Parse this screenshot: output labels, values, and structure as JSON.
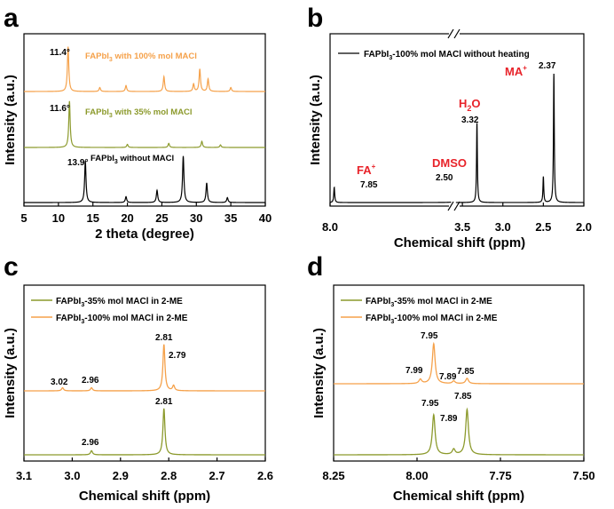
{
  "colors": {
    "black": "#000000",
    "orange": "#f5a14a",
    "olive": "#8c9a2c",
    "red": "#e8232a",
    "gray": "#5a5a5a"
  },
  "chart_data": [
    {
      "panel": "a",
      "type": "line",
      "xlabel": "2 theta (degree)",
      "ylabel": "Intensity (a.u.)",
      "xlim": [
        5,
        40
      ],
      "xticks": [
        "5",
        "10",
        "15",
        "20",
        "25",
        "30",
        "35",
        "40"
      ],
      "series": [
        {
          "name": "FAPbI3 with 100% mol MACl",
          "color": "#f5a14a",
          "peaks": [
            {
              "x": 11.4,
              "h": 0.9
            },
            {
              "x": 16.0,
              "h": 0.08
            },
            {
              "x": 19.8,
              "h": 0.12
            },
            {
              "x": 25.3,
              "h": 0.3
            },
            {
              "x": 29.6,
              "h": 0.15
            },
            {
              "x": 30.5,
              "h": 0.45
            },
            {
              "x": 31.7,
              "h": 0.25
            },
            {
              "x": 35.0,
              "h": 0.08
            }
          ]
        },
        {
          "name": "FAPbI3 with 35% mol MACl",
          "color": "#8c9a2c",
          "peaks": [
            {
              "x": 11.6,
              "h": 0.9
            },
            {
              "x": 20.0,
              "h": 0.06
            },
            {
              "x": 26.0,
              "h": 0.08
            },
            {
              "x": 30.8,
              "h": 0.12
            },
            {
              "x": 33.5,
              "h": 0.05
            }
          ]
        },
        {
          "name": "FAPbI3 without MACl",
          "color": "#000000",
          "peaks": [
            {
              "x": 13.9,
              "h": 0.85
            },
            {
              "x": 19.8,
              "h": 0.12
            },
            {
              "x": 24.3,
              "h": 0.25
            },
            {
              "x": 28.1,
              "h": 0.95
            },
            {
              "x": 31.5,
              "h": 0.4
            },
            {
              "x": 34.5,
              "h": 0.1
            }
          ]
        }
      ],
      "annotations": [
        "11.4°",
        "11.6°",
        "13.9°"
      ],
      "legend_labels": {
        "s100": {
          "main": "FAPbI",
          "sub": "3",
          "rest": " with 100% mol MACl"
        },
        "s35": {
          "main": "FAPbI",
          "sub": "3",
          "rest": " with 35% mol MACl"
        },
        "s0": {
          "main": "FAPbI",
          "sub": "3",
          "rest": " without MACl"
        }
      }
    },
    {
      "panel": "b",
      "type": "line",
      "xlabel": "Chemical shift (ppm)",
      "ylabel": "Intensity (a.u.)",
      "xticks": [
        "8.0",
        "3.5",
        "3.0",
        "2.5",
        "2.0"
      ],
      "broken_axis": true,
      "legend": {
        "main": "FAPbI",
        "sub": "3",
        "rest": "-100% mol MACl without heating"
      },
      "peaks": [
        {
          "x": 7.85,
          "h": 0.12
        },
        {
          "x": 3.32,
          "h": 0.62
        },
        {
          "x": 2.5,
          "h": 0.2
        },
        {
          "x": 2.37,
          "h": 1.0
        }
      ],
      "peak_labels": [
        "7.85",
        "3.32",
        "2.50",
        "2.37"
      ],
      "ion_labels": {
        "fa": {
          "main": "FA",
          "sup": "+"
        },
        "h2o": {
          "main": "H",
          "sub": "2",
          "rest": "O"
        },
        "dmso": {
          "main": "DMSO"
        },
        "ma": {
          "main": "MA",
          "sup": "+"
        }
      }
    },
    {
      "panel": "c",
      "type": "line",
      "xlabel": "Chemical shift (ppm)",
      "ylabel": "Intensity (a.u.)",
      "xlim": [
        3.1,
        2.6
      ],
      "xticks": [
        "3.1",
        "3.0",
        "2.9",
        "2.8",
        "2.7",
        "2.6"
      ],
      "series": [
        {
          "name": "FAPbI3-35% mol MACl in 2-ME",
          "color": "#8c9a2c",
          "peaks": [
            {
              "x": 2.96,
              "h": 0.08
            },
            {
              "x": 2.81,
              "h": 0.9
            }
          ]
        },
        {
          "name": "FAPbI3-100% mol MACl in 2-ME",
          "color": "#f5a14a",
          "peaks": [
            {
              "x": 3.02,
              "h": 0.06
            },
            {
              "x": 2.96,
              "h": 0.06
            },
            {
              "x": 2.81,
              "h": 0.9
            },
            {
              "x": 2.79,
              "h": 0.1
            }
          ]
        }
      ],
      "peak_labels": [
        "3.02",
        "2.96",
        "2.81",
        "2.79",
        "2.81",
        "2.96"
      ],
      "legend_labels": {
        "s35": {
          "main": "FAPbI",
          "sub": "3",
          "rest": "-35% mol MACl in 2-ME"
        },
        "s100": {
          "main": "FAPbI",
          "sub": "3",
          "rest": "-100% mol MACl in 2-ME"
        }
      }
    },
    {
      "panel": "d",
      "type": "line",
      "xlabel": "Chemical shift (ppm)",
      "ylabel": "Intensity (a.u.)",
      "xlim": [
        8.25,
        7.5
      ],
      "xticks": [
        "8.25",
        "8.00",
        "7.75",
        "7.50"
      ],
      "series": [
        {
          "name": "FAPbI3-35% mol MACl in 2-ME",
          "color": "#8c9a2c",
          "peaks": [
            {
              "x": 7.95,
              "h": 0.75
            },
            {
              "x": 7.89,
              "h": 0.1
            },
            {
              "x": 7.85,
              "h": 0.85
            }
          ]
        },
        {
          "name": "FAPbI3-100% mol MACl in 2-ME",
          "color": "#f5a14a",
          "peaks": [
            {
              "x": 7.99,
              "h": 0.08
            },
            {
              "x": 7.95,
              "h": 0.75
            },
            {
              "x": 7.89,
              "h": 0.05
            },
            {
              "x": 7.85,
              "h": 0.1
            }
          ]
        }
      ],
      "peak_labels": [
        "7.99",
        "7.95",
        "7.89",
        "7.85",
        "7.95",
        "7.89",
        "7.85"
      ],
      "legend_labels": {
        "s35": {
          "main": "FAPbI",
          "sub": "3",
          "rest": "-35% mol MACl in 2-ME"
        },
        "s100": {
          "main": "FAPbI",
          "sub": "3",
          "rest": "-100% mol MACl in 2-ME"
        }
      }
    }
  ]
}
